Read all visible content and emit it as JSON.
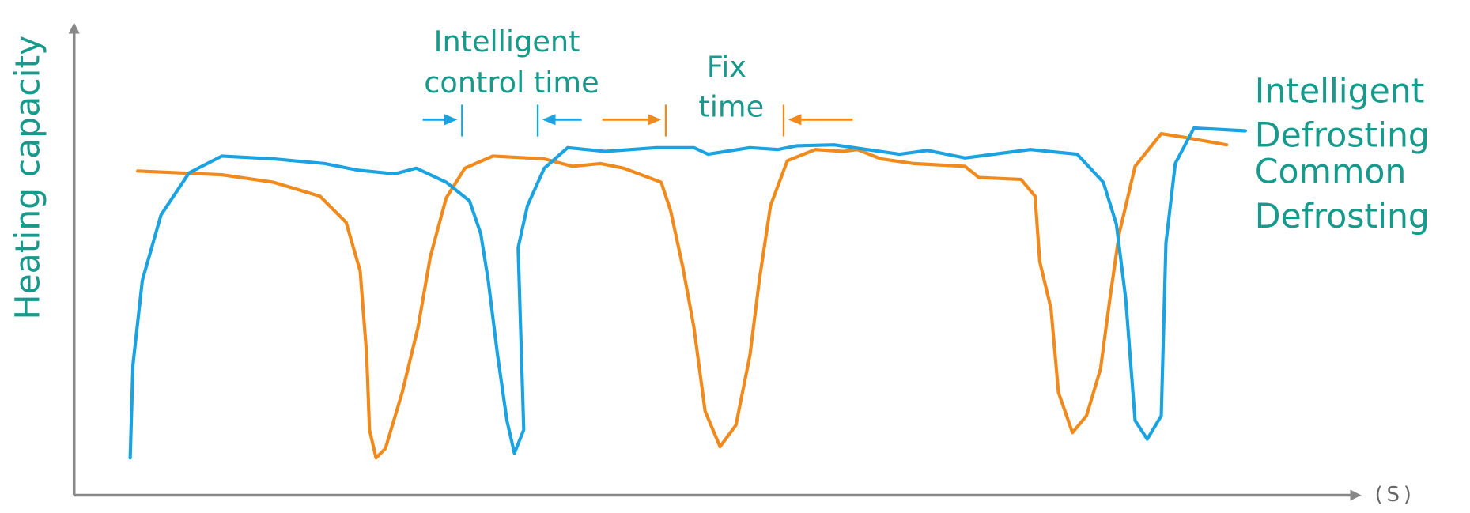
{
  "y_axis_label": "Heating capacity",
  "x_axis_label": "(S)",
  "annotations": {
    "intelligent_control_time": [
      "Intelligent",
      "control time"
    ],
    "fix_time": [
      "Fix",
      "time"
    ]
  },
  "legend": [
    {
      "lines": [
        "Intelligent",
        "Defrosting"
      ]
    },
    {
      "lines": [
        "Common",
        "Defrosting"
      ]
    }
  ]
}
